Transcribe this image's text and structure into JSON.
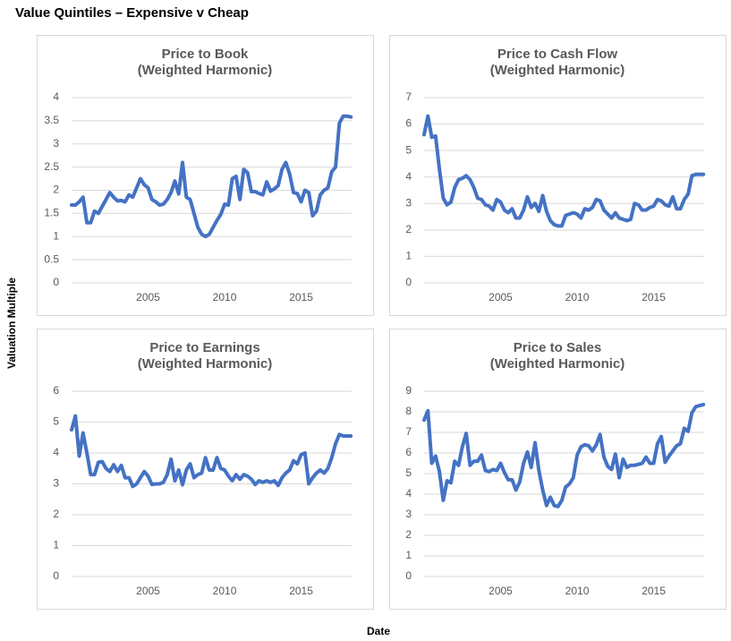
{
  "title": "Value Quintiles – Expensive v Cheap",
  "ylabel": "Valuation Multiple",
  "xlabel": "Date",
  "chart_data": [
    {
      "type": "line",
      "title": "Price to Book",
      "subtitle": "(Weighted Harmonic)",
      "color": "#4472c4",
      "grid": true,
      "xlim": [
        2000,
        2018.3
      ],
      "xticks": [
        2005,
        2010,
        2015
      ],
      "ylim": [
        0,
        4
      ],
      "yticks": [
        0,
        0.5,
        1,
        1.5,
        2,
        2.5,
        3,
        3.5,
        4
      ],
      "x": [
        2000,
        2000.25,
        2000.5,
        2000.75,
        2001,
        2001.25,
        2001.5,
        2001.75,
        2002,
        2002.25,
        2002.5,
        2002.75,
        2003,
        2003.25,
        2003.5,
        2003.75,
        2004,
        2004.25,
        2004.5,
        2004.75,
        2005,
        2005.25,
        2005.5,
        2005.75,
        2006,
        2006.25,
        2006.5,
        2006.75,
        2007,
        2007.25,
        2007.5,
        2007.75,
        2008,
        2008.25,
        2008.5,
        2008.75,
        2009,
        2009.25,
        2009.5,
        2009.75,
        2010,
        2010.25,
        2010.5,
        2010.75,
        2011,
        2011.25,
        2011.5,
        2011.75,
        2012,
        2012.25,
        2012.5,
        2012.75,
        2013,
        2013.25,
        2013.5,
        2013.75,
        2014,
        2014.25,
        2014.5,
        2014.75,
        2015,
        2015.25,
        2015.5,
        2015.75,
        2016,
        2016.25,
        2016.5,
        2016.75,
        2017,
        2017.25,
        2017.5,
        2017.75,
        2018,
        2018.25
      ],
      "values": [
        1.68,
        1.68,
        1.75,
        1.85,
        1.3,
        1.3,
        1.55,
        1.5,
        1.65,
        1.8,
        1.95,
        1.85,
        1.77,
        1.78,
        1.75,
        1.9,
        1.85,
        2.05,
        2.25,
        2.12,
        2.05,
        1.8,
        1.75,
        1.68,
        1.7,
        1.8,
        1.95,
        2.2,
        1.92,
        2.6,
        1.85,
        1.8,
        1.5,
        1.2,
        1.05,
        1.0,
        1.05,
        1.2,
        1.35,
        1.48,
        1.7,
        1.68,
        2.25,
        2.3,
        1.8,
        2.45,
        2.38,
        1.97,
        1.97,
        1.93,
        1.9,
        2.18,
        1.98,
        2.03,
        2.1,
        2.45,
        2.6,
        2.35,
        1.95,
        1.93,
        1.75,
        2.0,
        1.95,
        1.45,
        1.55,
        1.9,
        2.0,
        2.05,
        2.4,
        2.5,
        3.45,
        3.6,
        3.6,
        3.58
      ]
    },
    {
      "type": "line",
      "title": "Price to Cash Flow",
      "subtitle": "(Weighted Harmonic)",
      "color": "#4472c4",
      "grid": true,
      "xlim": [
        2000,
        2018.3
      ],
      "xticks": [
        2005,
        2010,
        2015
      ],
      "ylim": [
        0,
        7
      ],
      "yticks": [
        0,
        1,
        2,
        3,
        4,
        5,
        6,
        7
      ],
      "x": [
        2000,
        2000.25,
        2000.5,
        2000.75,
        2001,
        2001.25,
        2001.5,
        2001.75,
        2002,
        2002.25,
        2002.5,
        2002.75,
        2003,
        2003.25,
        2003.5,
        2003.75,
        2004,
        2004.25,
        2004.5,
        2004.75,
        2005,
        2005.25,
        2005.5,
        2005.75,
        2006,
        2006.25,
        2006.5,
        2006.75,
        2007,
        2007.25,
        2007.5,
        2007.75,
        2008,
        2008.25,
        2008.5,
        2008.75,
        2009,
        2009.25,
        2009.5,
        2009.75,
        2010,
        2010.25,
        2010.5,
        2010.75,
        2011,
        2011.25,
        2011.5,
        2011.75,
        2012,
        2012.25,
        2012.5,
        2012.75,
        2013,
        2013.25,
        2013.5,
        2013.75,
        2014,
        2014.25,
        2014.5,
        2014.75,
        2015,
        2015.25,
        2015.5,
        2015.75,
        2016,
        2016.25,
        2016.5,
        2016.75,
        2017,
        2017.25,
        2017.5,
        2017.75,
        2018,
        2018.25
      ],
      "values": [
        5.6,
        6.3,
        5.5,
        5.55,
        4.3,
        3.2,
        2.95,
        3.05,
        3.6,
        3.9,
        3.95,
        4.05,
        3.9,
        3.6,
        3.2,
        3.15,
        2.95,
        2.9,
        2.75,
        3.15,
        3.05,
        2.75,
        2.65,
        2.8,
        2.45,
        2.45,
        2.75,
        3.25,
        2.85,
        3.0,
        2.7,
        3.3,
        2.7,
        2.35,
        2.2,
        2.15,
        2.15,
        2.55,
        2.6,
        2.65,
        2.6,
        2.45,
        2.8,
        2.75,
        2.85,
        3.15,
        3.1,
        2.75,
        2.6,
        2.45,
        2.65,
        2.45,
        2.4,
        2.35,
        2.4,
        3.0,
        2.95,
        2.75,
        2.75,
        2.85,
        2.9,
        3.15,
        3.1,
        2.95,
        2.9,
        3.25,
        2.8,
        2.8,
        3.15,
        3.35,
        4.05,
        4.1,
        4.1,
        4.1
      ]
    },
    {
      "type": "line",
      "title": "Price to Earnings",
      "subtitle": "(Weighted Harmonic)",
      "color": "#4472c4",
      "grid": true,
      "xlim": [
        2000,
        2018.3
      ],
      "xticks": [
        2005,
        2010,
        2015
      ],
      "ylim": [
        0,
        6
      ],
      "yticks": [
        0,
        1,
        2,
        3,
        4,
        5,
        6
      ],
      "x": [
        2000,
        2000.25,
        2000.5,
        2000.75,
        2001,
        2001.25,
        2001.5,
        2001.75,
        2002,
        2002.25,
        2002.5,
        2002.75,
        2003,
        2003.25,
        2003.5,
        2003.75,
        2004,
        2004.25,
        2004.5,
        2004.75,
        2005,
        2005.25,
        2005.5,
        2005.75,
        2006,
        2006.25,
        2006.5,
        2006.75,
        2007,
        2007.25,
        2007.5,
        2007.75,
        2008,
        2008.25,
        2008.5,
        2008.75,
        2009,
        2009.25,
        2009.5,
        2009.75,
        2010,
        2010.25,
        2010.5,
        2010.75,
        2011,
        2011.25,
        2011.5,
        2011.75,
        2012,
        2012.25,
        2012.5,
        2012.75,
        2013,
        2013.25,
        2013.5,
        2013.75,
        2014,
        2014.25,
        2014.5,
        2014.75,
        2015,
        2015.25,
        2015.5,
        2015.75,
        2016,
        2016.25,
        2016.5,
        2016.75,
        2017,
        2017.25,
        2017.5,
        2017.75,
        2018,
        2018.25
      ],
      "values": [
        4.75,
        5.2,
        3.9,
        4.65,
        4.0,
        3.3,
        3.3,
        3.7,
        3.72,
        3.5,
        3.4,
        3.62,
        3.4,
        3.6,
        3.2,
        3.2,
        2.92,
        3.0,
        3.2,
        3.4,
        3.25,
        2.98,
        3.0,
        3.0,
        3.05,
        3.3,
        3.8,
        3.1,
        3.45,
        2.97,
        3.45,
        3.65,
        3.2,
        3.3,
        3.35,
        3.85,
        3.45,
        3.45,
        3.85,
        3.5,
        3.45,
        3.25,
        3.1,
        3.3,
        3.15,
        3.3,
        3.25,
        3.15,
        2.98,
        3.1,
        3.05,
        3.1,
        3.05,
        3.1,
        2.95,
        3.2,
        3.35,
        3.45,
        3.75,
        3.65,
        3.95,
        4.0,
        3.0,
        3.2,
        3.35,
        3.45,
        3.35,
        3.5,
        3.85,
        4.3,
        4.6,
        4.55,
        4.55,
        4.55
      ]
    },
    {
      "type": "line",
      "title": "Price to Sales",
      "subtitle": "(Weighted Harmonic)",
      "color": "#4472c4",
      "grid": true,
      "xlim": [
        2000,
        2018.3
      ],
      "xticks": [
        2005,
        2010,
        2015
      ],
      "ylim": [
        0,
        9
      ],
      "yticks": [
        0,
        1,
        2,
        3,
        4,
        5,
        6,
        7,
        8,
        9
      ],
      "x": [
        2000,
        2000.25,
        2000.5,
        2000.75,
        2001,
        2001.25,
        2001.5,
        2001.75,
        2002,
        2002.25,
        2002.5,
        2002.75,
        2003,
        2003.25,
        2003.5,
        2003.75,
        2004,
        2004.25,
        2004.5,
        2004.75,
        2005,
        2005.25,
        2005.5,
        2005.75,
        2006,
        2006.25,
        2006.5,
        2006.75,
        2007,
        2007.25,
        2007.5,
        2007.75,
        2008,
        2008.25,
        2008.5,
        2008.75,
        2009,
        2009.25,
        2009.5,
        2009.75,
        2010,
        2010.25,
        2010.5,
        2010.75,
        2011,
        2011.25,
        2011.5,
        2011.75,
        2012,
        2012.25,
        2012.5,
        2012.75,
        2013,
        2013.25,
        2013.5,
        2013.75,
        2014,
        2014.25,
        2014.5,
        2014.75,
        2015,
        2015.25,
        2015.5,
        2015.75,
        2016,
        2016.25,
        2016.5,
        2016.75,
        2017,
        2017.25,
        2017.5,
        2017.75,
        2018,
        2018.25
      ],
      "values": [
        7.6,
        8.05,
        5.5,
        5.85,
        5.1,
        3.7,
        4.65,
        4.55,
        5.6,
        5.4,
        6.3,
        6.95,
        5.4,
        5.6,
        5.6,
        5.9,
        5.15,
        5.1,
        5.2,
        5.15,
        5.5,
        5.05,
        4.7,
        4.7,
        4.2,
        4.6,
        5.5,
        6.05,
        5.3,
        6.5,
        5.15,
        4.2,
        3.45,
        3.85,
        3.45,
        3.4,
        3.7,
        4.35,
        4.5,
        4.8,
        5.9,
        6.3,
        6.4,
        6.35,
        6.1,
        6.4,
        6.9,
        5.8,
        5.35,
        5.2,
        5.95,
        4.8,
        5.7,
        5.3,
        5.4,
        5.4,
        5.45,
        5.5,
        5.8,
        5.5,
        5.5,
        6.45,
        6.8,
        5.55,
        5.85,
        6.1,
        6.35,
        6.45,
        7.2,
        7.05,
        7.95,
        8.25,
        8.3,
        8.35
      ]
    }
  ]
}
